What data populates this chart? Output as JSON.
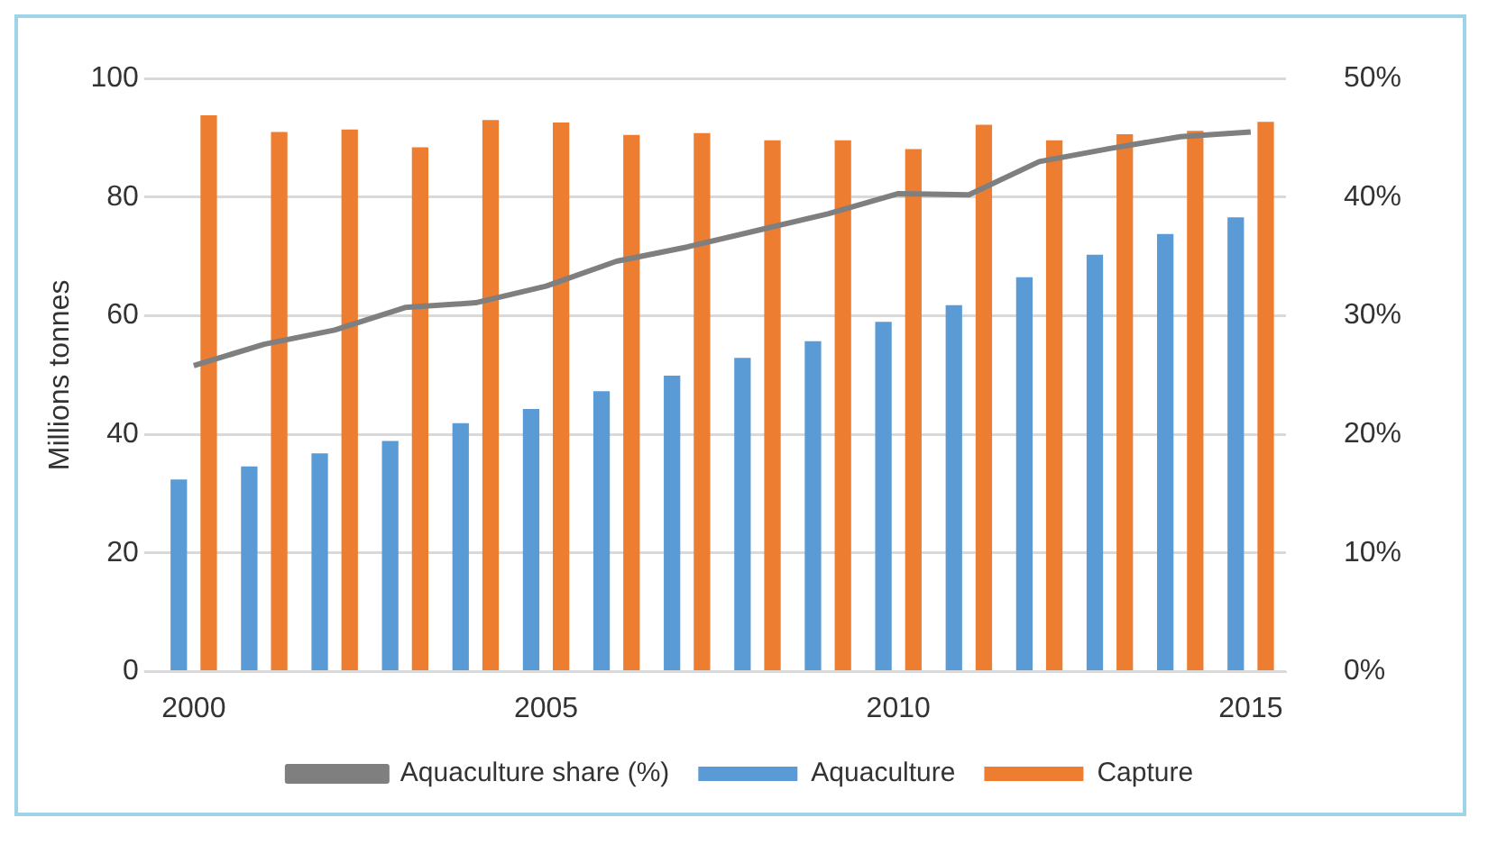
{
  "chart_data": {
    "type": "bar",
    "ylabel": "Millions tonnes",
    "categories": [
      "2000",
      null,
      null,
      null,
      null,
      "2005",
      null,
      null,
      null,
      null,
      "2010",
      null,
      null,
      null,
      null,
      "2015"
    ],
    "series": [
      {
        "name": "Aquaculture",
        "color": "#5b9bd5",
        "values": [
          32.4,
          34.6,
          36.8,
          38.9,
          41.9,
          44.3,
          47.3,
          49.9,
          52.9,
          55.7,
          59.0,
          61.8,
          66.5,
          70.3,
          73.8,
          76.6
        ]
      },
      {
        "name": "Capture",
        "color": "#ed7d31",
        "values": [
          93.8,
          91.0,
          91.4,
          88.4,
          93.0,
          92.6,
          90.5,
          90.8,
          89.6,
          89.6,
          88.1,
          92.2,
          89.6,
          90.6,
          91.2,
          92.7
        ]
      },
      {
        "name": "Aquaculture share (%)",
        "type": "line",
        "axis": "y2",
        "color": "#7f7f7f",
        "values": [
          25.8,
          27.6,
          28.8,
          30.7,
          31.1,
          32.5,
          34.6,
          35.8,
          37.2,
          38.6,
          40.3,
          40.2,
          43.0,
          44.1,
          45.1,
          45.5
        ]
      }
    ],
    "ylim": [
      0,
      100
    ],
    "yticks": [
      0,
      20,
      40,
      60,
      80,
      100
    ],
    "y2lim": [
      0,
      50
    ],
    "y2ticks": [
      {
        "value": 0,
        "label": "0%"
      },
      {
        "value": 10,
        "label": "10%"
      },
      {
        "value": 20,
        "label": "20%"
      },
      {
        "value": 30,
        "label": "30%"
      },
      {
        "value": 40,
        "label": "40%"
      },
      {
        "value": 50,
        "label": "50%"
      }
    ],
    "grid": "y",
    "legend": "bottom",
    "marker": "none",
    "line_style": "solid"
  }
}
